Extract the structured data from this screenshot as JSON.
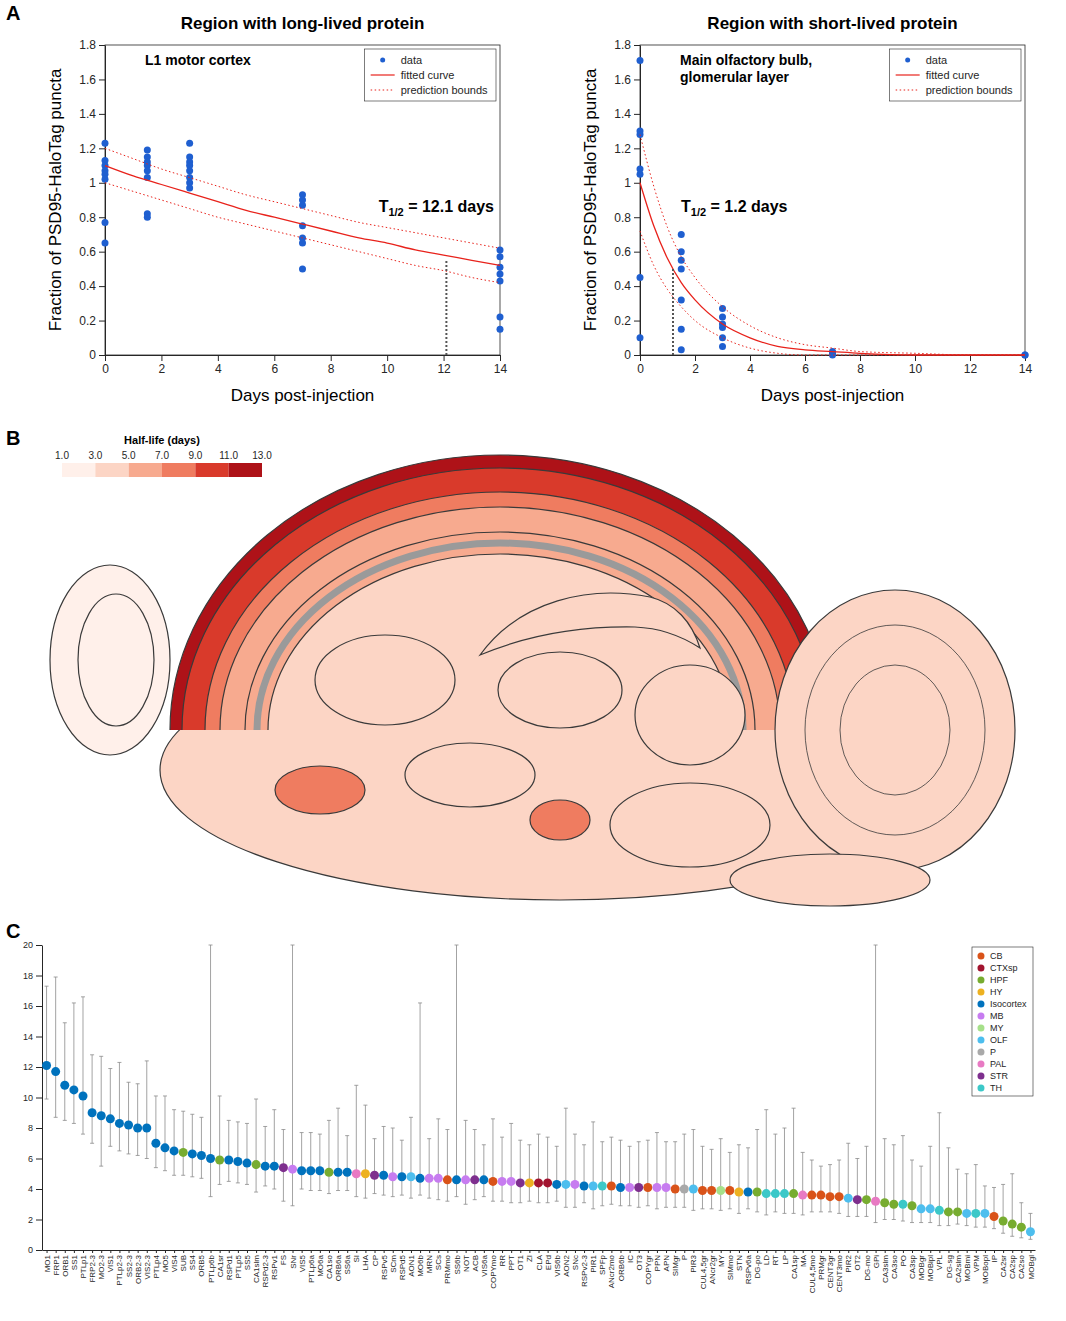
{
  "chart_data": [
    {
      "type": "scatter",
      "panel": "A",
      "title": "Region with long-lived protein",
      "subtitle": "L1 motor cortex",
      "xlabel": "Days post-injection",
      "ylabel": "Fraction of PSD95-HaloTag puncta",
      "xlim": [
        0,
        14
      ],
      "ylim": [
        0,
        1.8
      ],
      "xticks": [
        0,
        2,
        4,
        6,
        8,
        10,
        12,
        14
      ],
      "yticks": [
        0,
        0.2,
        0.4,
        0.6,
        0.8,
        1,
        1.2,
        1.4,
        1.6,
        1.8
      ],
      "legend": "top-right",
      "series": [
        {
          "name": "data",
          "type": "scatter",
          "marker": "circle",
          "color": "#1f5fd0",
          "x": [
            0,
            0,
            0,
            0,
            0,
            0,
            0,
            0,
            1.5,
            1.5,
            1.5,
            1.5,
            1.5,
            1.5,
            1.5,
            1.5,
            3,
            3,
            3,
            3,
            3,
            3,
            3,
            3,
            7,
            7,
            7,
            7,
            7,
            7,
            7,
            14,
            14,
            14,
            14,
            14,
            14,
            14
          ],
          "values": [
            1.23,
            1.13,
            1.1,
            1.07,
            1.05,
            1.02,
            0.77,
            0.65,
            1.19,
            1.15,
            1.12,
            1.1,
            1.07,
            1.03,
            0.82,
            0.8,
            1.23,
            1.15,
            1.12,
            1.1,
            1.07,
            1.03,
            1.0,
            0.97,
            0.93,
            0.9,
            0.87,
            0.75,
            0.68,
            0.65,
            0.5,
            0.61,
            0.57,
            0.51,
            0.47,
            0.43,
            0.22,
            0.15
          ]
        },
        {
          "name": "fitted curve",
          "type": "line",
          "color": "#e8221b",
          "x": [
            0,
            1,
            2,
            3,
            4,
            5,
            6,
            7,
            8,
            9,
            10,
            11,
            12,
            13,
            14
          ],
          "values": [
            1.1,
            1.04,
            0.99,
            0.94,
            0.89,
            0.84,
            0.8,
            0.76,
            0.72,
            0.68,
            0.65,
            0.61,
            0.58,
            0.55,
            0.52
          ]
        },
        {
          "name": "prediction bounds",
          "type": "line",
          "line_style": "dotted",
          "color": "#e8221b",
          "x": [
            0,
            1,
            2,
            3,
            4,
            5,
            6,
            7,
            8,
            9,
            10,
            11,
            12,
            13,
            14
          ],
          "lower": [
            1.0,
            0.95,
            0.9,
            0.85,
            0.8,
            0.76,
            0.72,
            0.68,
            0.64,
            0.6,
            0.56,
            0.52,
            0.49,
            0.45,
            0.42
          ],
          "upper": [
            1.2,
            1.14,
            1.08,
            1.03,
            0.98,
            0.93,
            0.89,
            0.85,
            0.81,
            0.77,
            0.74,
            0.71,
            0.68,
            0.65,
            0.62
          ]
        }
      ],
      "annotation": {
        "base": "T",
        "sub": "1/2",
        "text": " = 12.1 days",
        "x": 12.1
      }
    },
    {
      "type": "scatter",
      "title": "Region with short-lived protein",
      "subtitle": "Main olfactory bulb, glomerular layer",
      "xlabel": "Days post-injection",
      "ylabel": "Fraction of PSD95-HaloTag puncta",
      "xlim": [
        0,
        14
      ],
      "ylim": [
        0,
        1.8
      ],
      "xticks": [
        0,
        2,
        4,
        6,
        8,
        10,
        12,
        14
      ],
      "yticks": [
        0,
        0.2,
        0.4,
        0.6,
        0.8,
        1,
        1.2,
        1.4,
        1.6,
        1.8
      ],
      "legend": "top-right",
      "series": [
        {
          "name": "data",
          "type": "scatter",
          "marker": "circle",
          "color": "#1f5fd0",
          "x": [
            0,
            0,
            0,
            0,
            0,
            0,
            0,
            1.5,
            1.5,
            1.5,
            1.5,
            1.5,
            1.5,
            1.5,
            3,
            3,
            3,
            3,
            3,
            3,
            7,
            7,
            7,
            14,
            14
          ],
          "values": [
            1.71,
            1.3,
            1.28,
            1.08,
            1.05,
            0.45,
            0.1,
            0.7,
            0.6,
            0.55,
            0.5,
            0.32,
            0.15,
            0.03,
            0.27,
            0.22,
            0.18,
            0.16,
            0.1,
            0.05,
            0.02,
            0.01,
            0,
            0,
            0
          ]
        },
        {
          "name": "fitted curve",
          "type": "line",
          "color": "#e8221b",
          "x": [
            0,
            0.5,
            1,
            1.5,
            2,
            3,
            4,
            5,
            6,
            7,
            8,
            10,
            12,
            14
          ],
          "values": [
            1.0,
            0.75,
            0.56,
            0.42,
            0.32,
            0.18,
            0.1,
            0.05,
            0.03,
            0.02,
            0.01,
            0,
            0,
            0
          ]
        },
        {
          "name": "prediction bounds",
          "type": "line",
          "line_style": "dotted",
          "color": "#e8221b",
          "x": [
            0,
            0.5,
            1,
            1.5,
            2,
            3,
            4,
            5,
            6,
            7,
            8,
            10,
            12,
            14
          ],
          "lower": [
            0.72,
            0.52,
            0.38,
            0.28,
            0.2,
            0.1,
            0.04,
            0.01,
            0,
            0,
            0,
            0,
            0,
            0
          ],
          "upper": [
            1.28,
            0.98,
            0.74,
            0.57,
            0.45,
            0.28,
            0.17,
            0.1,
            0.06,
            0.04,
            0.02,
            0.01,
            0,
            0
          ]
        }
      ],
      "annotation": {
        "base": "T",
        "sub": "1/2",
        "text": " = 1.2 days",
        "x": 1.2
      }
    },
    {
      "type": "map",
      "panel": "B",
      "colorbar": {
        "title": "Half-life (days)",
        "range": [
          1,
          13
        ],
        "ticks": [
          {
            "value": 1,
            "label": "1.0"
          },
          {
            "value": 3,
            "label": "3.0"
          },
          {
            "value": 5,
            "label": "5.0"
          },
          {
            "value": 7,
            "label": "7.0"
          },
          {
            "value": 9,
            "label": "9.0"
          },
          {
            "value": 11,
            "label": "11.0"
          },
          {
            "value": 13,
            "label": "13.0"
          }
        ],
        "colors": [
          "#fff0ea",
          "#fcd5c5",
          "#f7aa8f",
          "#ef7c60",
          "#d93a2b",
          "#ae1218"
        ]
      },
      "values": [
        4.4,
        12.1,
        9.0,
        7.0,
        6.0,
        5.0,
        4.5,
        4.9,
        3.3,
        3.0,
        4.7,
        4.4,
        4.0,
        7.5,
        7.0,
        3.8,
        3.9,
        1.2,
        2.7
      ]
    },
    {
      "type": "dot",
      "panel": "C",
      "legend": "top-right",
      "ylim": [
        0,
        20
      ],
      "yticks": [
        0,
        2,
        4,
        6,
        8,
        10,
        12,
        14,
        16,
        18,
        20
      ],
      "categories": [
        "MO1",
        "FRP1",
        "ORB1",
        "SS1",
        "PTLp1",
        "FRP2-3",
        "MO2-3",
        "VIS1",
        "PTLp2-3",
        "SS2-3",
        "ORB2-3",
        "VIS2-3",
        "PTLp4",
        "MO5",
        "VIS4",
        "SUB",
        "SS4",
        "ORB5",
        "PTLp6b",
        "CA1sr",
        "RSPd1",
        "PTLp5",
        "SS5",
        "CA1slm",
        "RSPd2-3",
        "RSPv1",
        "FS",
        "SNr",
        "VIS5",
        "PTLp6a",
        "MO6a",
        "CA1so",
        "ORB6a",
        "SS6a",
        "SI",
        "LHA",
        "CP",
        "RSPv5",
        "SCm",
        "RSPd5",
        "AON1",
        "MO6b",
        "MRN",
        "SCs",
        "PRMmo",
        "SS6b",
        "NOT",
        "ACB",
        "VIS6a",
        "COPYmo",
        "RR",
        "PPT",
        "OT1",
        "ZI",
        "CLA",
        "EPd",
        "VIS6b",
        "AON2",
        "SNc",
        "RSPv2-3",
        "PIR1",
        "SPFp",
        "ANcr2mo",
        "ORB6b",
        "IC",
        "OT3",
        "COPYgr",
        "PPN",
        "APN",
        "SIMgr",
        "P",
        "PIR3",
        "CUL4,5gr",
        "ANcr2gr",
        "MY",
        "SIMmo",
        "STN",
        "RSPv6a",
        "DG-po",
        "LD",
        "RT",
        "LP",
        "CA1sp",
        "MA",
        "CUL4,5mo",
        "PRMgr",
        "CENT3gr",
        "CENT3mo",
        "PIR2",
        "OT2",
        "DG-mo",
        "GPi",
        "CA3slm",
        "CA3so",
        "PO",
        "CA3sp",
        "MOBgr",
        "MOBipl",
        "VPL",
        "DG-sg",
        "CA2slm",
        "MOBmi",
        "VPM",
        "MOBopl",
        "IP",
        "CA2sr",
        "CA2sp",
        "CA2so",
        "MOBgl"
      ],
      "values": [
        12.1,
        11.7,
        10.8,
        10.5,
        10.1,
        9.0,
        8.8,
        8.6,
        8.3,
        8.2,
        8.0,
        8.0,
        7.0,
        6.7,
        6.5,
        6.4,
        6.3,
        6.2,
        6.0,
        5.9,
        5.9,
        5.8,
        5.7,
        5.6,
        5.5,
        5.5,
        5.4,
        5.3,
        5.2,
        5.2,
        5.2,
        5.1,
        5.1,
        5.1,
        5.0,
        5.0,
        4.9,
        4.9,
        4.8,
        4.8,
        4.8,
        4.7,
        4.7,
        4.7,
        4.6,
        4.6,
        4.6,
        4.6,
        4.6,
        4.5,
        4.5,
        4.5,
        4.4,
        4.4,
        4.4,
        4.4,
        4.3,
        4.3,
        4.3,
        4.2,
        4.2,
        4.2,
        4.2,
        4.1,
        4.1,
        4.1,
        4.1,
        4.1,
        4.1,
        4.0,
        4.0,
        4.0,
        3.9,
        3.9,
        3.9,
        3.9,
        3.8,
        3.8,
        3.8,
        3.7,
        3.7,
        3.7,
        3.7,
        3.6,
        3.6,
        3.6,
        3.5,
        3.5,
        3.4,
        3.3,
        3.3,
        3.2,
        3.1,
        3.0,
        3.0,
        2.9,
        2.7,
        2.7,
        2.6,
        2.5,
        2.5,
        2.4,
        2.4,
        2.4,
        2.2,
        1.9,
        1.7,
        1.5,
        1.2
      ],
      "ci_low": [
        9.9,
        8.7,
        8.5,
        8.3,
        7.6,
        7.0,
        5.5,
        6.8,
        6.5,
        6.3,
        6.2,
        6.0,
        5.4,
        5.2,
        4.9,
        4.9,
        4.8,
        4.7,
        3.5,
        4.3,
        4.5,
        4.4,
        4.3,
        3.8,
        4.2,
        4.0,
        3.2,
        2.9,
        4.0,
        3.9,
        3.9,
        3.7,
        3.9,
        3.9,
        3.5,
        3.4,
        3.7,
        3.6,
        3.5,
        3.6,
        3.4,
        3.6,
        3.4,
        3.3,
        3.2,
        3.5,
        3.0,
        3.3,
        3.5,
        3.2,
        3.2,
        3.1,
        3.1,
        3.2,
        3.1,
        3.1,
        3.2,
        2.8,
        2.8,
        3.1,
        2.7,
        2.9,
        3.0,
        2.9,
        2.9,
        2.8,
        2.9,
        2.7,
        2.8,
        2.8,
        2.8,
        2.6,
        2.7,
        2.7,
        2.6,
        2.7,
        2.4,
        2.7,
        2.5,
        2.3,
        2.5,
        2.4,
        2.4,
        2.3,
        2.5,
        2.5,
        2.5,
        2.4,
        2.2,
        2.2,
        2.2,
        1.8,
        2.0,
        2.0,
        1.9,
        1.8,
        1.8,
        1.8,
        1.6,
        1.6,
        1.7,
        1.6,
        1.5,
        1.5,
        1.4,
        1.1,
        0.9,
        0.8,
        0.7
      ],
      "ci_high": [
        17.3,
        17.9,
        14.9,
        16.2,
        16.6,
        12.8,
        12.7,
        11.9,
        12.3,
        11.0,
        10.9,
        12.4,
        10.1,
        10.1,
        9.2,
        9.1,
        8.9,
        8.7,
        20,
        10.1,
        8.5,
        8.4,
        8.3,
        9.9,
        8.1,
        9.2,
        7.9,
        20,
        7.7,
        7.7,
        7.6,
        8.5,
        9.3,
        7.5,
        10.8,
        9.5,
        7.3,
        8.1,
        8.0,
        7.2,
        8.7,
        16.2,
        7.3,
        8.6,
        7.9,
        20,
        8.5,
        7.9,
        6.9,
        8.6,
        7.4,
        8.3,
        7.2,
        6.9,
        7.6,
        7.4,
        6.8,
        9.3,
        7.6,
        6.9,
        8.4,
        7.1,
        7.4,
        7.2,
        6.8,
        7.1,
        7.2,
        7.7,
        7.1,
        7.1,
        7.6,
        7.9,
        6.8,
        6.6,
        7.3,
        6.4,
        6.9,
        6.7,
        7.9,
        9.2,
        7.6,
        8.0,
        9.3,
        6.4,
        5.9,
        5.5,
        5.6,
        5.9,
        7.0,
        6.0,
        6.8,
        20,
        7.3,
        6.9,
        7.5,
        5.9,
        5.5,
        6.8,
        9.0,
        6.7,
        5.3,
        5.0,
        5.6,
        4.2,
        4.1,
        4.3,
        5.0,
        3.1,
        2.4
      ],
      "group": [
        "Isocortex",
        "Isocortex",
        "Isocortex",
        "Isocortex",
        "Isocortex",
        "Isocortex",
        "Isocortex",
        "Isocortex",
        "Isocortex",
        "Isocortex",
        "Isocortex",
        "Isocortex",
        "Isocortex",
        "Isocortex",
        "Isocortex",
        "HPF",
        "Isocortex",
        "Isocortex",
        "Isocortex",
        "HPF",
        "Isocortex",
        "Isocortex",
        "Isocortex",
        "HPF",
        "Isocortex",
        "Isocortex",
        "STR",
        "MB",
        "Isocortex",
        "Isocortex",
        "Isocortex",
        "HPF",
        "Isocortex",
        "Isocortex",
        "PAL",
        "HY",
        "STR",
        "Isocortex",
        "MB",
        "Isocortex",
        "OLF",
        "Isocortex",
        "MB",
        "MB",
        "CB",
        "Isocortex",
        "MB",
        "STR",
        "Isocortex",
        "CB",
        "MB",
        "MB",
        "STR",
        "HY",
        "CTXsp",
        "CTXsp",
        "Isocortex",
        "OLF",
        "MB",
        "Isocortex",
        "OLF",
        "TH",
        "CB",
        "Isocortex",
        "MB",
        "STR",
        "CB",
        "MB",
        "MB",
        "CB",
        "P",
        "OLF",
        "CB",
        "CB",
        "MY",
        "CB",
        "HY",
        "Isocortex",
        "HPF",
        "TH",
        "TH",
        "TH",
        "HPF",
        "PAL",
        "CB",
        "CB",
        "CB",
        "CB",
        "OLF",
        "STR",
        "HPF",
        "PAL",
        "HPF",
        "HPF",
        "TH",
        "HPF",
        "OLF",
        "OLF",
        "TH",
        "HPF",
        "HPF",
        "OLF",
        "TH",
        "OLF",
        "CB",
        "HPF",
        "HPF",
        "HPF",
        "OLF"
      ],
      "groups": [
        {
          "name": "CB",
          "color": "#d95319"
        },
        {
          "name": "CTXsp",
          "color": "#a2142f"
        },
        {
          "name": "HPF",
          "color": "#77ac30"
        },
        {
          "name": "HY",
          "color": "#edb120"
        },
        {
          "name": "Isocortex",
          "color": "#0072bd"
        },
        {
          "name": "MB",
          "color": "#c77cf0"
        },
        {
          "name": "MY",
          "color": "#a6e08a"
        },
        {
          "name": "OLF",
          "color": "#4dbeee"
        },
        {
          "name": "P",
          "color": "#a9a9a9"
        },
        {
          "name": "PAL",
          "color": "#e87ac3"
        },
        {
          "name": "STR",
          "color": "#7e2f8e"
        },
        {
          "name": "TH",
          "color": "#3cc8c8"
        }
      ]
    }
  ]
}
